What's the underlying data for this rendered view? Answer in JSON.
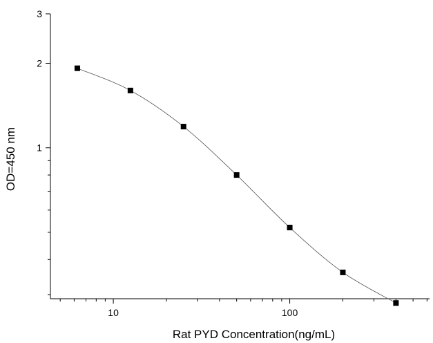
{
  "chart_data": {
    "type": "scatter",
    "xlabel": "Rat PYD  Concentration(ng/mL)",
    "ylabel": "OD=450 nm",
    "x_scale": "log",
    "y_scale": "log",
    "xlim": [
      4.4,
      620
    ],
    "ylim": [
      0.29,
      3
    ],
    "x_ticks": [
      10,
      100
    ],
    "x_tick_labels": [
      "10",
      "100"
    ],
    "y_ticks": [
      1,
      2,
      3
    ],
    "y_tick_labels": [
      "1",
      "2",
      "3"
    ],
    "grid": false,
    "legend": "none",
    "series": [
      {
        "x": [
          6.25,
          12.5,
          25,
          50,
          100,
          200,
          400
        ],
        "y": [
          1.92,
          1.6,
          1.19,
          0.8,
          0.52,
          0.36,
          0.28
        ],
        "marker": "square",
        "line": "smooth",
        "color": "#000000"
      }
    ]
  }
}
